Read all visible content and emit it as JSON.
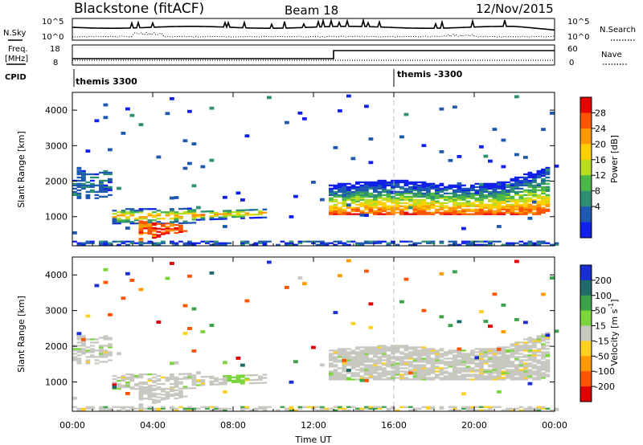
{
  "header": {
    "station": "Blackstone (fitACF)",
    "beam": "Beam 18",
    "date": "12/Nov/2015"
  },
  "sky_panel": {
    "left_label": "N.Sky",
    "right_label": "N.Search",
    "left_ticks": [
      "10^5",
      "10^0"
    ],
    "right_ticks": [
      "10^5",
      "10^0"
    ]
  },
  "freq_panel": {
    "left_label_1": "Freq.",
    "left_label_2": "[MHz]",
    "right_label": "Nave",
    "left_ticks": [
      "18",
      "8"
    ],
    "right_ticks": [
      "60",
      "0"
    ]
  },
  "cpid_panel": {
    "label": "CPID",
    "entries": [
      {
        "label": "themis 3300",
        "start_hour": 0
      },
      {
        "label": "themis -3300",
        "start_hour": 16
      }
    ]
  },
  "chart_data": [
    {
      "type": "heatmap",
      "name": "power",
      "ylabel": "Slant Range [km]",
      "xlabel": "Time UT",
      "x_ticks": [
        "00:00",
        "04:00",
        "08:00",
        "12:00",
        "16:00",
        "20:00",
        "00:00"
      ],
      "xlim_hours": [
        0,
        24
      ],
      "y_ticks": [
        1000,
        2000,
        3000,
        4000
      ],
      "ylim": [
        180,
        4500
      ],
      "colorbar": {
        "label": "Power [dB]",
        "ticks": [
          "28",
          "24",
          "20",
          "16",
          "12",
          "8",
          "4"
        ],
        "colors": [
          "#e80000",
          "#ff5500",
          "#ff9900",
          "#ffd000",
          "#b8dd20",
          "#4cb848",
          "#2e8f74",
          "#1e58b0",
          "#1020e8"
        ]
      }
    },
    {
      "type": "heatmap",
      "name": "velocity",
      "ylabel": "Slant Range [km]",
      "xlabel": "Time UT",
      "x_ticks": [
        "00:00",
        "04:00",
        "08:00",
        "12:00",
        "16:00",
        "20:00",
        "00:00"
      ],
      "xlim_hours": [
        0,
        24
      ],
      "y_ticks": [
        1000,
        2000,
        3000,
        4000
      ],
      "ylim": [
        180,
        4500
      ],
      "colorbar": {
        "label": "Velocity [m s",
        "label_sup": "-1",
        "label_end": "]",
        "ticks": [
          "200",
          "100",
          "50",
          "15",
          "-15",
          "-50",
          "-100",
          "-200"
        ],
        "colors": [
          "#1a2fd0",
          "#1f6a6a",
          "#3aa34a",
          "#7ad63c",
          "#c8c8c0",
          "#ffd020",
          "#ff9a00",
          "#ff5500",
          "#e00000"
        ]
      }
    }
  ]
}
